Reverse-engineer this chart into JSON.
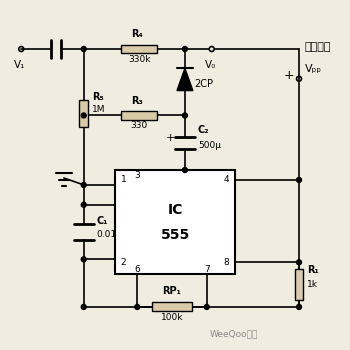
{
  "bg_color": "#f0ede0",
  "line_color": "#000000",
  "labels": {
    "V1": "V₁",
    "V0": "V₀",
    "R4": "R₄",
    "R4_val": "330k",
    "R5": "R₅",
    "R5_val": "1M",
    "R3": "R₃",
    "R3_val": "330",
    "C2": "C₂",
    "C2_val": "500μ",
    "C1": "C₁",
    "C1_val": "0.01",
    "RP1": "RP₁",
    "RP1_val": "100k",
    "R1": "R₁",
    "R1_val": "1k",
    "VDD": "Vₚₚ",
    "diode": "2CP",
    "ic_label": "IC",
    "ic_number": "555",
    "scope": "接示波器"
  },
  "watermark": "WeeQoo维库"
}
